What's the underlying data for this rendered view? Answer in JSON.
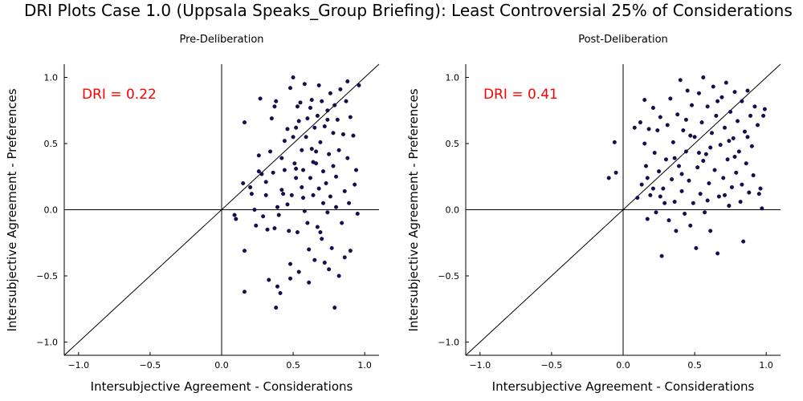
{
  "figure": {
    "title": "DRI Plots Case 1.0 (Uppsala Speaks_Group Briefing): Least Controversial 25% of Considerations"
  },
  "colors": {
    "points": "#1a0a5e",
    "annotation": "#ff0000",
    "axes": "#000000"
  },
  "chart_data": [
    {
      "type": "scatter",
      "title": "Pre-Deliberation",
      "xlabel": "Intersubjective Agreement - Considerations",
      "ylabel": "Intersubjective Agreement - Preferences",
      "xlim": [
        -1.1,
        1.1
      ],
      "ylim": [
        -1.1,
        1.1
      ],
      "xticks": [
        -1.0,
        -0.5,
        0.0,
        0.5,
        1.0
      ],
      "yticks": [
        -1.0,
        -0.5,
        0.0,
        0.5,
        1.0
      ],
      "xtick_labels": [
        "−1.0",
        "−0.5",
        "0.0",
        "0.5",
        "1.0"
      ],
      "ytick_labels": [
        "−1.0",
        "−0.5",
        "0.0",
        "0.5",
        "1.0"
      ],
      "grid": false,
      "reference_lines": [
        "x=0",
        "y=0",
        "y=x"
      ],
      "annotation": "DRI = 0.22",
      "points": [
        [
          0.16,
          0.66
        ],
        [
          0.15,
          0.2
        ],
        [
          0.09,
          -0.04
        ],
        [
          0.1,
          -0.07
        ],
        [
          0.16,
          -0.31
        ],
        [
          0.16,
          -0.62
        ],
        [
          0.2,
          0.17
        ],
        [
          0.21,
          0.12
        ],
        [
          0.23,
          0.0
        ],
        [
          0.24,
          -0.12
        ],
        [
          0.26,
          0.41
        ],
        [
          0.27,
          0.84
        ],
        [
          0.26,
          0.29
        ],
        [
          0.28,
          0.27
        ],
        [
          0.29,
          -0.05
        ],
        [
          0.31,
          0.21
        ],
        [
          0.31,
          0.11
        ],
        [
          0.32,
          -0.15
        ],
        [
          0.33,
          -0.53
        ],
        [
          0.34,
          0.44
        ],
        [
          0.35,
          0.69
        ],
        [
          0.37,
          0.78
        ],
        [
          0.38,
          0.82
        ],
        [
          0.36,
          0.28
        ],
        [
          0.37,
          -0.14
        ],
        [
          0.38,
          -0.74
        ],
        [
          0.39,
          -0.58
        ],
        [
          0.39,
          0.02
        ],
        [
          0.4,
          -0.04
        ],
        [
          0.41,
          -0.63
        ],
        [
          0.42,
          0.39
        ],
        [
          0.42,
          0.15
        ],
        [
          0.43,
          0.12
        ],
        [
          0.44,
          0.3
        ],
        [
          0.46,
          0.61
        ],
        [
          0.46,
          0.04
        ],
        [
          0.47,
          -0.16
        ],
        [
          0.48,
          -0.41
        ],
        [
          0.48,
          -0.52
        ],
        [
          0.48,
          0.92
        ],
        [
          0.5,
          1.0
        ],
        [
          0.5,
          0.55
        ],
        [
          0.49,
          0.11
        ],
        [
          0.51,
          0.35
        ],
        [
          0.52,
          0.24
        ],
        [
          0.53,
          -0.17
        ],
        [
          0.54,
          -0.47
        ],
        [
          0.52,
          0.62
        ],
        [
          0.53,
          0.78
        ],
        [
          0.54,
          0.67
        ],
        [
          0.56,
          0.45
        ],
        [
          0.57,
          0.3
        ],
        [
          0.55,
          0.81
        ],
        [
          0.58,
          -0.01
        ],
        [
          0.58,
          0.95
        ],
        [
          0.59,
          0.55
        ],
        [
          0.6,
          -0.1
        ],
        [
          0.61,
          -0.55
        ],
        [
          0.61,
          -0.3
        ],
        [
          0.6,
          0.69
        ],
        [
          0.62,
          0.24
        ],
        [
          0.63,
          0.46
        ],
        [
          0.63,
          0.83
        ],
        [
          0.64,
          0.11
        ],
        [
          0.65,
          0.62
        ],
        [
          0.65,
          -0.38
        ],
        [
          0.66,
          0.35
        ],
        [
          0.67,
          0.71
        ],
        [
          0.67,
          -0.13
        ],
        [
          0.68,
          0.94
        ],
        [
          0.68,
          0.16
        ],
        [
          0.69,
          0.51
        ],
        [
          0.7,
          -0.22
        ],
        [
          0.7,
          0.82
        ],
        [
          0.71,
          0.29
        ],
        [
          0.72,
          0.63
        ],
        [
          0.72,
          -0.4
        ],
        [
          0.73,
          0.2
        ],
        [
          0.74,
          0.75
        ],
        [
          0.74,
          -0.02
        ],
        [
          0.75,
          0.42
        ],
        [
          0.76,
          0.88
        ],
        [
          0.76,
          0.1
        ],
        [
          0.77,
          -0.29
        ],
        [
          0.78,
          0.58
        ],
        [
          0.78,
          0.33
        ],
        [
          0.79,
          -0.74
        ],
        [
          0.79,
          0.79
        ],
        [
          0.8,
          0.02
        ],
        [
          0.8,
          0.25
        ],
        [
          0.81,
          0.68
        ],
        [
          0.82,
          0.45
        ],
        [
          0.82,
          -0.5
        ],
        [
          0.83,
          0.91
        ],
        [
          0.84,
          -0.1
        ],
        [
          0.85,
          0.57
        ],
        [
          0.86,
          0.14
        ],
        [
          0.86,
          -0.36
        ],
        [
          0.87,
          0.82
        ],
        [
          0.88,
          0.39
        ],
        [
          0.88,
          0.97
        ],
        [
          0.89,
          0.05
        ],
        [
          0.9,
          -0.31
        ],
        [
          0.9,
          0.7
        ],
        [
          0.92,
          0.56
        ],
        [
          0.93,
          0.19
        ],
        [
          0.94,
          0.3
        ],
        [
          0.95,
          -0.03
        ],
        [
          0.96,
          0.94
        ],
        [
          0.56,
          0.17
        ],
        [
          0.62,
          0.77
        ],
        [
          0.71,
          0.05
        ],
        [
          0.74,
          0.68
        ],
        [
          0.66,
          0.44
        ],
        [
          0.44,
          0.52
        ],
        [
          0.57,
          0.09
        ],
        [
          0.69,
          -0.17
        ],
        [
          0.75,
          -0.45
        ],
        [
          0.52,
          0.31
        ],
        [
          0.64,
          0.36
        ]
      ]
    },
    {
      "type": "scatter",
      "title": "Post-Deliberation",
      "xlabel": "Intersubjective Agreement - Considerations",
      "ylabel": "Intersubjective Agreement - Preferences",
      "xlim": [
        -1.1,
        1.1
      ],
      "ylim": [
        -1.1,
        1.1
      ],
      "xticks": [
        -1.0,
        -0.5,
        0.0,
        0.5,
        1.0
      ],
      "yticks": [
        -1.0,
        -0.5,
        0.0,
        0.5,
        1.0
      ],
      "xtick_labels": [
        "−1.0",
        "−0.5",
        "0.0",
        "0.5",
        "1.0"
      ],
      "ytick_labels": [
        "−1.0",
        "−0.5",
        "0.0",
        "0.5",
        "1.0"
      ],
      "grid": false,
      "reference_lines": [
        "x=0",
        "y=0",
        "y=x"
      ],
      "annotation": "DRI = 0.41",
      "points": [
        [
          -0.1,
          0.24
        ],
        [
          -0.05,
          0.28
        ],
        [
          -0.06,
          0.51
        ],
        [
          0.08,
          0.62
        ],
        [
          0.1,
          0.09
        ],
        [
          0.12,
          0.66
        ],
        [
          0.13,
          0.19
        ],
        [
          0.15,
          0.83
        ],
        [
          0.15,
          0.5
        ],
        [
          0.16,
          0.33
        ],
        [
          0.17,
          0.24
        ],
        [
          0.17,
          -0.07
        ],
        [
          0.18,
          0.61
        ],
        [
          0.19,
          0.11
        ],
        [
          0.21,
          0.77
        ],
        [
          0.21,
          0.16
        ],
        [
          0.22,
          0.43
        ],
        [
          0.23,
          -0.02
        ],
        [
          0.24,
          0.6
        ],
        [
          0.25,
          0.29
        ],
        [
          0.26,
          0.7
        ],
        [
          0.27,
          -0.35
        ],
        [
          0.28,
          0.16
        ],
        [
          0.29,
          0.05
        ],
        [
          0.3,
          0.38
        ],
        [
          0.31,
          0.64
        ],
        [
          0.32,
          -0.08
        ],
        [
          0.33,
          0.84
        ],
        [
          0.34,
          0.23
        ],
        [
          0.35,
          0.51
        ],
        [
          0.36,
          0.06
        ],
        [
          0.37,
          -0.16
        ],
        [
          0.38,
          0.72
        ],
        [
          0.39,
          0.33
        ],
        [
          0.4,
          0.98
        ],
        [
          0.41,
          0.14
        ],
        [
          0.42,
          0.6
        ],
        [
          0.43,
          -0.03
        ],
        [
          0.44,
          0.44
        ],
        [
          0.45,
          0.9
        ],
        [
          0.46,
          0.22
        ],
        [
          0.47,
          -0.12
        ],
        [
          0.48,
          0.79
        ],
        [
          0.49,
          0.05
        ],
        [
          0.5,
          0.55
        ],
        [
          0.51,
          -0.29
        ],
        [
          0.52,
          0.32
        ],
        [
          0.53,
          0.88
        ],
        [
          0.54,
          0.12
        ],
        [
          0.55,
          0.66
        ],
        [
          0.56,
          1.0
        ],
        [
          0.57,
          -0.02
        ],
        [
          0.58,
          0.42
        ],
        [
          0.59,
          0.78
        ],
        [
          0.6,
          0.2
        ],
        [
          0.61,
          -0.16
        ],
        [
          0.62,
          0.58
        ],
        [
          0.63,
          0.93
        ],
        [
          0.64,
          0.3
        ],
        [
          0.65,
          0.71
        ],
        [
          0.66,
          -0.33
        ],
        [
          0.67,
          0.1
        ],
        [
          0.68,
          0.49
        ],
        [
          0.69,
          0.85
        ],
        [
          0.7,
          0.24
        ],
        [
          0.71,
          0.62
        ],
        [
          0.72,
          0.96
        ],
        [
          0.73,
          0.38
        ],
        [
          0.74,
          0.03
        ],
        [
          0.75,
          0.74
        ],
        [
          0.76,
          0.17
        ],
        [
          0.77,
          0.54
        ],
        [
          0.78,
          0.89
        ],
        [
          0.79,
          0.28
        ],
        [
          0.8,
          0.67
        ],
        [
          0.81,
          0.44
        ],
        [
          0.82,
          0.06
        ],
        [
          0.83,
          0.82
        ],
        [
          0.84,
          -0.24
        ],
        [
          0.85,
          0.59
        ],
        [
          0.86,
          0.35
        ],
        [
          0.87,
          0.9
        ],
        [
          0.88,
          0.13
        ],
        [
          0.89,
          0.71
        ],
        [
          0.9,
          0.48
        ],
        [
          0.91,
          0.26
        ],
        [
          0.92,
          0.78
        ],
        [
          0.94,
          0.64
        ],
        [
          0.95,
          0.12
        ],
        [
          0.96,
          0.16
        ],
        [
          0.97,
          0.01
        ],
        [
          0.98,
          0.71
        ],
        [
          0.99,
          0.76
        ],
        [
          0.53,
          0.43
        ],
        [
          0.44,
          0.68
        ],
        [
          0.36,
          0.39
        ],
        [
          0.61,
          0.47
        ],
        [
          0.71,
          0.11
        ],
        [
          0.78,
          0.4
        ],
        [
          0.26,
          0.1
        ],
        [
          0.47,
          0.56
        ],
        [
          0.59,
          0.07
        ],
        [
          0.66,
          0.82
        ],
        [
          0.83,
          0.19
        ],
        [
          0.74,
          0.52
        ],
        [
          0.41,
          0.27
        ],
        [
          0.56,
          0.37
        ],
        [
          0.87,
          0.55
        ]
      ]
    }
  ]
}
